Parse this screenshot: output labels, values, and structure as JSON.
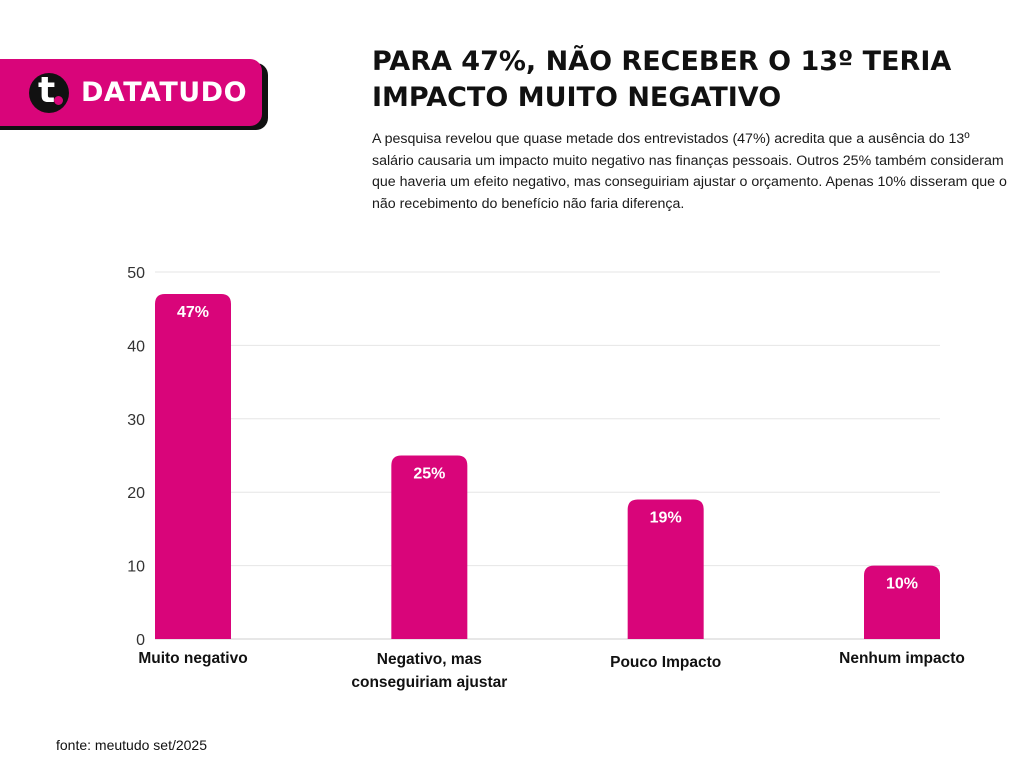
{
  "brand": {
    "name": "DATATUDO",
    "logo_letter": "t",
    "logo_icon": "datatudo-logo-icon",
    "accent_color": "#d9057a"
  },
  "header": {
    "title": "PARA 47%, NÃO RECEBER O 13º TERIA IMPACTO MUITO NEGATIVO",
    "description": "A pesquisa revelou que quase metade dos entrevistados (47%) acredita que a ausência do 13º salário causaria um impacto muito negativo nas finanças pessoais. Outros 25% também consideram que haveria um efeito negativo, mas conseguiriam ajustar o orçamento. Apenas 10% disseram que o não recebimento do benefício não faria diferença."
  },
  "chart_data": {
    "type": "bar",
    "categories": [
      "Muito negativo",
      "Negativo, mas conseguiriam ajustar",
      "Pouco Impacto",
      "Nenhum impacto"
    ],
    "category_lines": [
      [
        "Muito negativo"
      ],
      [
        "Negativo, mas",
        "conseguiriam ajustar"
      ],
      [
        "Pouco Impacto"
      ],
      [
        "Nenhum impacto"
      ]
    ],
    "values": [
      47,
      25,
      19,
      10
    ],
    "data_labels": [
      "47%",
      "25%",
      "19%",
      "10%"
    ],
    "y_ticks": [
      0,
      10,
      20,
      30,
      40,
      50
    ],
    "ylim": [
      0,
      50
    ],
    "grid": true,
    "legend": "none",
    "bar_color": "#d9057a",
    "title": "",
    "xlabel": "",
    "ylabel": ""
  },
  "footer": {
    "source": "fonte: meutudo set/2025"
  }
}
